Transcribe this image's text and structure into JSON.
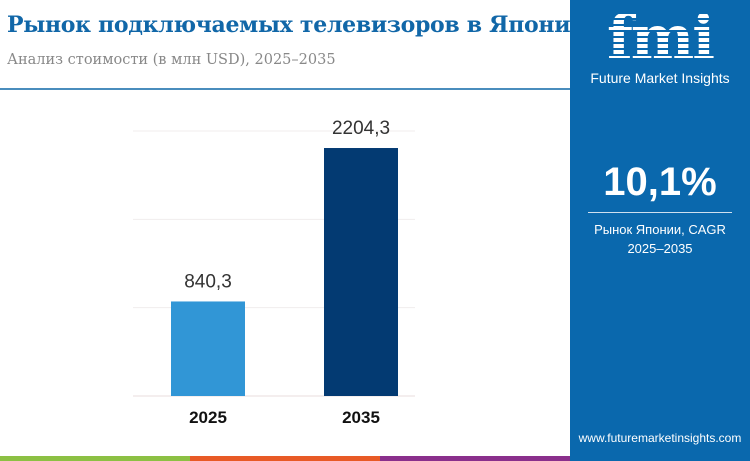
{
  "header": {
    "title": "Рынок подключаемых телевизоров в Японии",
    "subtitle": "Анализ стоимости (в млн USD), 2025–2035"
  },
  "sidebar": {
    "logo_text": "fmi",
    "brand": "Future Market Insights",
    "cagr_value": "10,1%",
    "cagr_label_1": "Рынок Японии, CAGR",
    "cagr_label_2": "2025–2035",
    "website": "www.futuremarketinsights.com"
  },
  "colors": {
    "title": "#1167a8",
    "panel": "#0a68ad",
    "bar_2025": "#3196d6",
    "bar_2035": "#033a72",
    "strip": [
      "#8cc043",
      "#e85a26",
      "#8a2f8c"
    ]
  },
  "chart_data": {
    "type": "bar",
    "categories": [
      "2025",
      "2035"
    ],
    "values": [
      840.3,
      2204.3
    ],
    "data_labels": [
      "840,3",
      "2204,3"
    ],
    "title": "",
    "xlabel": "",
    "ylabel": "",
    "ylim": [
      0,
      2400
    ],
    "grid": true,
    "legend": "none"
  }
}
